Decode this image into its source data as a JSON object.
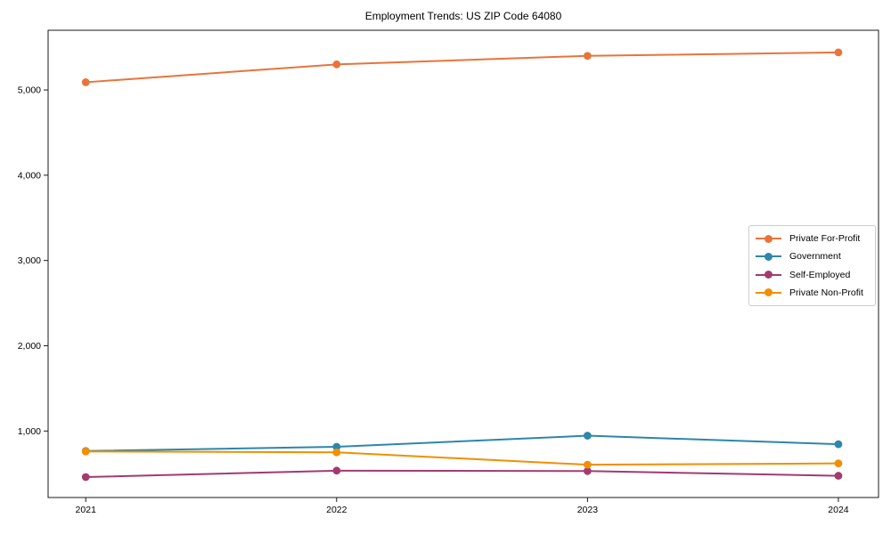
{
  "title": "Employment Trends: US ZIP Code 64080",
  "chart_data": {
    "type": "line",
    "x": [
      2021,
      2022,
      2023,
      2024
    ],
    "x_tick_labels": [
      "2021",
      "2022",
      "2023",
      "2024"
    ],
    "y_tick_values": [
      1000,
      2000,
      3000,
      4000,
      5000
    ],
    "y_tick_labels": [
      "1,000",
      "2,000",
      "3,000",
      "4,000",
      "5,000"
    ],
    "xlim": [
      2020.85,
      2024.16
    ],
    "ylim": [
      220,
      5700
    ],
    "grid": false,
    "legend_position": "center-right",
    "series": [
      {
        "name": "Private For-Profit",
        "color": "#e8743b",
        "values": [
          5090,
          5300,
          5400,
          5440
        ]
      },
      {
        "name": "Government",
        "color": "#2e86ab",
        "values": [
          765,
          815,
          945,
          845
        ]
      },
      {
        "name": "Self-Employed",
        "color": "#a23b72",
        "values": [
          460,
          535,
          530,
          475
        ]
      },
      {
        "name": "Private Non-Profit",
        "color": "#f18f01",
        "values": [
          760,
          750,
          605,
          620
        ]
      }
    ]
  }
}
